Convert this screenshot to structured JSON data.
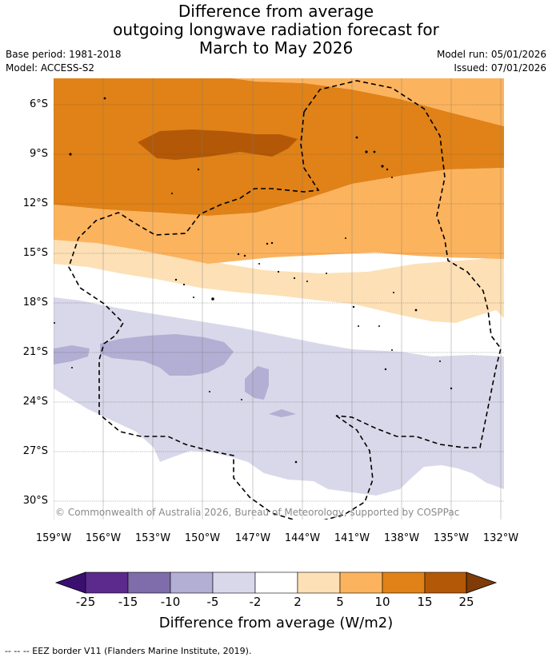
{
  "title": {
    "line1": "Difference from average",
    "line2": "outgoing longwave radiation forecast for",
    "line3": "March to May 2026"
  },
  "meta": {
    "base_period": "Base period: 1981-2018",
    "model": "Model: ACCESS-S2",
    "model_run": "Model run: 05/01/2026",
    "issued": "Issued: 07/01/2026"
  },
  "map": {
    "lat_labels": [
      "6°S",
      "9°S",
      "12°S",
      "15°S",
      "18°S",
      "21°S",
      "24°S",
      "27°S",
      "30°S"
    ],
    "lon_labels": [
      "159°W",
      "156°W",
      "153°W",
      "150°W",
      "147°W",
      "144°W",
      "141°W",
      "138°W",
      "135°W",
      "132°W"
    ],
    "copyright": "© Commonwealth of Australia 2026, Bureau of Meteorology, supported by COSPPac"
  },
  "colorbar": {
    "title": "Difference from average (W/m2)",
    "ticks": [
      "-25",
      "-15",
      "-10",
      "-5",
      "-2",
      "2",
      "5",
      "10",
      "15",
      "25"
    ],
    "colors": [
      "#3b0f70",
      "#5b2a8c",
      "#7e6daa",
      "#b3aed3",
      "#d8d8ea",
      "#ffffff",
      "#fde0b6",
      "#fcb35e",
      "#e08217",
      "#b35806",
      "#7f3b08"
    ]
  },
  "footnote": "--  --  -- EEZ border V11 (Flanders Marine Institute, 2019)."
}
